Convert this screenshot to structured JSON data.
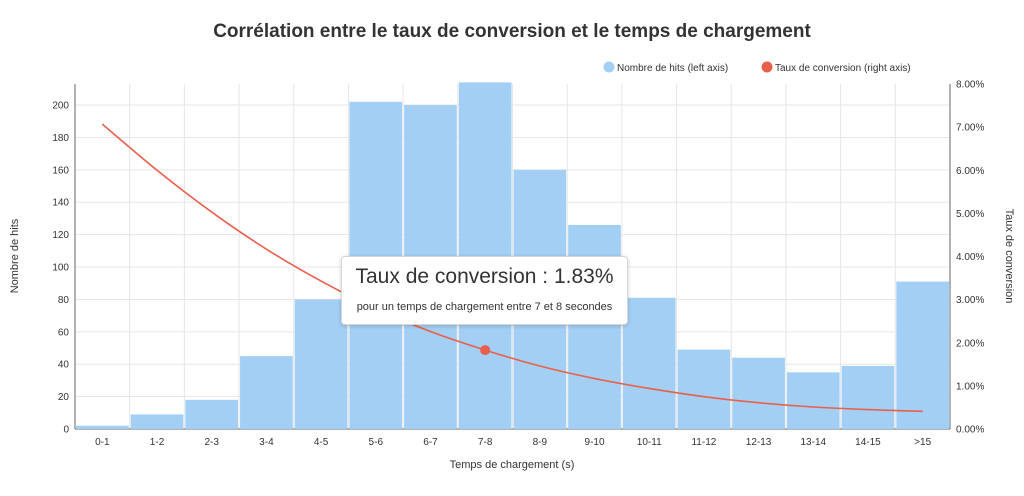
{
  "chart_data": {
    "type": "bar",
    "title": "Corrélation entre le taux de conversion et le temps de chargement",
    "xlabel": "Temps de chargement (s)",
    "ylabel": "Nombre de hits",
    "ylabel_right": "Taux de conversion",
    "categories": [
      "0-1",
      "1-2",
      "2-3",
      "3-4",
      "4-5",
      "5-6",
      "6-7",
      "7-8",
      "8-9",
      "9-10",
      "10-11",
      "11-12",
      "12-13",
      "13-14",
      "14-15",
      ">15"
    ],
    "series": [
      {
        "name": "Nombre de hits (left axis)",
        "type": "bar",
        "axis": "left",
        "color": "#a3cff4",
        "values": [
          2,
          9,
          18,
          45,
          80,
          202,
          200,
          214,
          160,
          126,
          81,
          49,
          44,
          35,
          39,
          91
        ]
      },
      {
        "name": "Taux de conversion (right axis)",
        "type": "line",
        "axis": "right",
        "color": "#e8604c",
        "values": [
          7.07,
          6.0,
          5.03,
          4.17,
          3.43,
          2.79,
          2.26,
          1.83,
          1.46,
          1.17,
          0.94,
          0.75,
          0.61,
          0.51,
          0.45,
          0.41
        ]
      }
    ],
    "ylim": [
      0,
      213
    ],
    "yticks": [
      0,
      20,
      40,
      60,
      80,
      100,
      120,
      140,
      160,
      180,
      200
    ],
    "ylim_right": [
      0,
      8
    ],
    "yticks_right": [
      "0.00%",
      "1.00%",
      "2.00%",
      "3.00%",
      "4.00%",
      "5.00%",
      "6.00%",
      "7.00%",
      "8.00%"
    ],
    "grid": true,
    "legend": "top-right",
    "highlighted_category": "7-8"
  },
  "tooltip": {
    "title": "Taux de conversion : 1.83%",
    "subtitle": "pour un temps de chargement entre 7 et 8 secondes"
  }
}
